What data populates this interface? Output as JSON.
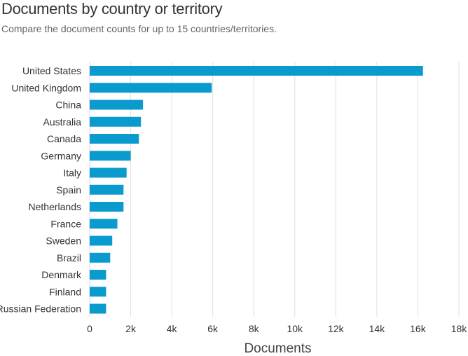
{
  "chart_data": {
    "type": "bar",
    "orientation": "horizontal",
    "title": "Documents by country or territory",
    "subtitle": "Compare the document counts for up to 15 countries/territories.",
    "xlabel": "Documents",
    "ylabel": "",
    "categories": [
      "United States",
      "United Kingdom",
      "China",
      "Australia",
      "Canada",
      "Germany",
      "Italy",
      "Spain",
      "Netherlands",
      "France",
      "Sweden",
      "Brazil",
      "Denmark",
      "Finland",
      "Russian Federation"
    ],
    "values": [
      16250,
      5950,
      2600,
      2500,
      2400,
      2000,
      1800,
      1650,
      1650,
      1350,
      1100,
      1000,
      800,
      800,
      800
    ],
    "xlim": [
      0,
      18000
    ],
    "xticks": [
      0,
      2000,
      4000,
      6000,
      8000,
      10000,
      12000,
      14000,
      16000,
      18000
    ],
    "xtick_labels": [
      "0",
      "2k",
      "4k",
      "6k",
      "8k",
      "10k",
      "12k",
      "14k",
      "16k",
      "18k"
    ],
    "grid": true,
    "legend": "none",
    "colors": {
      "bar": "#0a9bce",
      "grid": "#e0e0e0"
    }
  }
}
